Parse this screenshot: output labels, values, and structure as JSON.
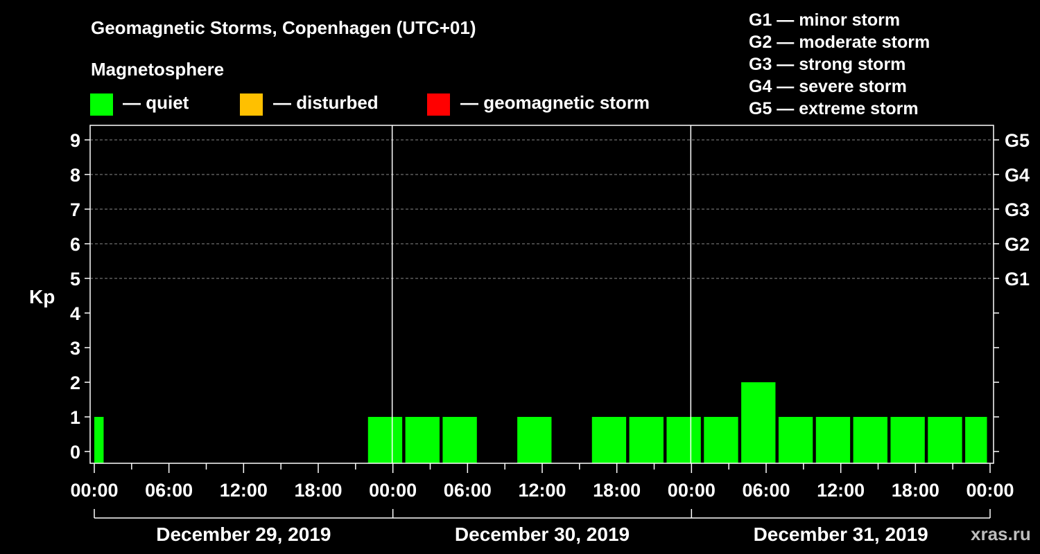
{
  "title": "Geomagnetic Storms, Copenhagen (UTC+01)",
  "magnetosphere_label": "Magnetosphere",
  "legend": [
    {
      "label": "— quiet",
      "color": "#00ff00"
    },
    {
      "label": "— disturbed",
      "color": "#ffc000"
    },
    {
      "label": "— geomagnetic storm",
      "color": "#ff0000"
    }
  ],
  "storm_scale": [
    "G1 — minor storm",
    "G2 — moderate storm",
    "G3 — strong storm",
    "G4 — severe storm",
    "G5 — extreme storm"
  ],
  "watermark": "xras.ru",
  "chart_data": {
    "type": "bar",
    "ylabel": "Kp",
    "ylim": [
      0,
      9
    ],
    "yticks": [
      "0",
      "1",
      "2",
      "3",
      "4",
      "5",
      "6",
      "7",
      "8",
      "9"
    ],
    "right_axis_labels": [
      {
        "kp": 5,
        "label": "G1"
      },
      {
        "kp": 6,
        "label": "G2"
      },
      {
        "kp": 7,
        "label": "G3"
      },
      {
        "kp": 8,
        "label": "G4"
      },
      {
        "kp": 9,
        "label": "G5"
      }
    ],
    "grid": true,
    "xtick_labels": [
      "00:00",
      "06:00",
      "12:00",
      "18:00",
      "00:00",
      "06:00",
      "12:00",
      "18:00",
      "00:00",
      "06:00",
      "12:00",
      "18:00",
      "00:00"
    ],
    "days": [
      "December 29, 2019",
      "December 30, 2019",
      "December 31, 2019"
    ],
    "bars": [
      {
        "start_hour": 0,
        "end_hour": 0.75,
        "kp": 1,
        "status": "quiet"
      },
      {
        "start_hour": 22,
        "end_hour": 24.75,
        "kp": 1,
        "status": "quiet"
      },
      {
        "start_hour": 25,
        "end_hour": 27.75,
        "kp": 1,
        "status": "quiet"
      },
      {
        "start_hour": 28,
        "end_hour": 30.75,
        "kp": 1,
        "status": "quiet"
      },
      {
        "start_hour": 34,
        "end_hour": 36.75,
        "kp": 1,
        "status": "quiet"
      },
      {
        "start_hour": 40,
        "end_hour": 42.75,
        "kp": 1,
        "status": "quiet"
      },
      {
        "start_hour": 43,
        "end_hour": 45.75,
        "kp": 1,
        "status": "quiet"
      },
      {
        "start_hour": 46,
        "end_hour": 48.75,
        "kp": 1,
        "status": "quiet"
      },
      {
        "start_hour": 49,
        "end_hour": 51.75,
        "kp": 1,
        "status": "quiet"
      },
      {
        "start_hour": 52,
        "end_hour": 54.75,
        "kp": 2,
        "status": "quiet"
      },
      {
        "start_hour": 55,
        "end_hour": 57.75,
        "kp": 1,
        "status": "quiet"
      },
      {
        "start_hour": 58,
        "end_hour": 60.75,
        "kp": 1,
        "status": "quiet"
      },
      {
        "start_hour": 61,
        "end_hour": 63.75,
        "kp": 1,
        "status": "quiet"
      },
      {
        "start_hour": 64,
        "end_hour": 66.75,
        "kp": 1,
        "status": "quiet"
      },
      {
        "start_hour": 67,
        "end_hour": 69.75,
        "kp": 1,
        "status": "quiet"
      },
      {
        "start_hour": 70,
        "end_hour": 71.75,
        "kp": 1,
        "status": "quiet"
      }
    ]
  }
}
